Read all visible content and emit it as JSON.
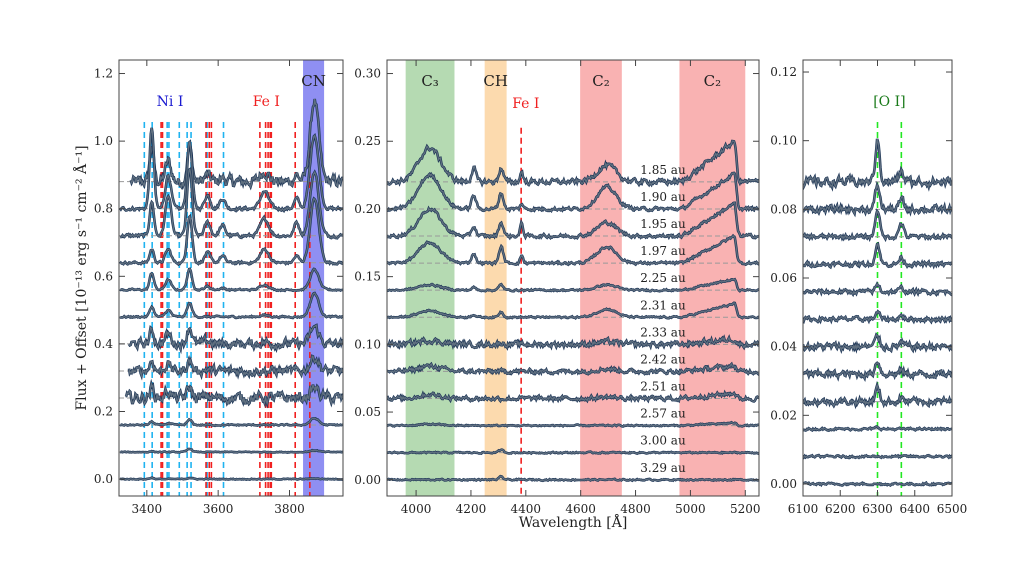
{
  "chart_data": [
    {
      "type": "line",
      "ylabel": "Flux + Offset [10⁻¹³ erg s⁻¹ cm⁻² Å⁻¹]",
      "xlabel": "",
      "xlim": [
        3322,
        3950
      ],
      "ylim": [
        -0.05,
        1.24
      ],
      "xticks": [
        3400,
        3600,
        3800
      ],
      "xtick_labels": [
        "3400",
        "3600",
        "3800"
      ],
      "yticks": [
        0,
        0.2,
        0.4,
        0.6,
        0.8,
        1.0,
        1.2
      ],
      "ytick_labels": [
        "0.0",
        "0.2",
        "0.4",
        "0.6",
        "0.8",
        "1.0",
        "1.2"
      ],
      "bands": [
        {
          "label": "CN",
          "range": [
            3838,
            3897
          ],
          "color": "#7b7bf0",
          "label_color": "#222222"
        }
      ],
      "line_groups": [
        {
          "label": "Ni I",
          "color": "#1fb3f0",
          "label_color": "#1a1ad0",
          "label_at": 3465,
          "positions": [
            3393,
            3415,
            3457,
            3462,
            3491,
            3513,
            3524,
            3569,
            3615
          ]
        },
        {
          "label": "Fe I",
          "color": "#f02020",
          "label_color": "#f02020",
          "label_at": 3735,
          "positions": [
            3440,
            3444,
            3566,
            3575,
            3581,
            3717,
            3733,
            3740,
            3746,
            3749,
            3816,
            3857
          ]
        }
      ],
      "features": [
        {
          "center": 3414,
          "sigma": 6
        },
        {
          "center": 3460,
          "sigma": 8
        },
        {
          "center": 3520,
          "sigma": 7
        },
        {
          "center": 3570,
          "sigma": 8
        },
        {
          "center": 3612,
          "sigma": 8
        },
        {
          "center": 3730,
          "sigma": 12
        },
        {
          "center": 3820,
          "sigma": 7
        },
        {
          "center": 3870,
          "sigma": 12
        }
      ],
      "series": [
        {
          "offset": 0.88,
          "start": 3355,
          "noise": 0.025,
          "amplitudes": [
            0.1,
            0.06,
            0.1,
            0.02,
            0.01,
            0.03,
            0.02,
            0.24
          ]
        },
        {
          "offset": 0.8,
          "start": 3325,
          "noise": 0.008,
          "amplitudes": [
            0.24,
            0.1,
            0.2,
            0.04,
            0.03,
            0.05,
            0.03,
            0.22
          ]
        },
        {
          "offset": 0.72,
          "start": 3325,
          "noise": 0.008,
          "amplitudes": [
            0.1,
            0.12,
            0.2,
            0.04,
            0.03,
            0.05,
            0.04,
            0.19
          ]
        },
        {
          "offset": 0.64,
          "start": 3325,
          "noise": 0.006,
          "amplitudes": [
            0.04,
            0.04,
            0.14,
            0.03,
            0.02,
            0.04,
            0.02,
            0.19
          ]
        },
        {
          "offset": 0.56,
          "start": 3325,
          "noise": 0.004,
          "amplitudes": [
            0.05,
            0.03,
            0.06,
            0.01,
            0.005,
            0.015,
            0,
            0.06
          ]
        },
        {
          "offset": 0.48,
          "start": 3325,
          "noise": 0.004,
          "amplitudes": [
            0.03,
            0.02,
            0.04,
            0,
            0,
            0.005,
            0,
            0.07
          ]
        },
        {
          "offset": 0.4,
          "start": 3350,
          "noise": 0.02,
          "amplitudes": [
            0.04,
            0.03,
            0.05,
            0.01,
            0,
            0.005,
            0,
            0.05
          ]
        },
        {
          "offset": 0.32,
          "start": 3350,
          "noise": 0.02,
          "amplitudes": [
            0.03,
            0.02,
            0.03,
            0.005,
            0,
            0,
            0,
            0.04
          ]
        },
        {
          "offset": 0.24,
          "start": 3340,
          "noise": 0.025,
          "amplitudes": [
            0.03,
            0.02,
            0.03,
            0.005,
            0,
            0,
            0,
            0.03
          ]
        },
        {
          "offset": 0.16,
          "start": 3325,
          "noise": 0.003,
          "amplitudes": [
            0.01,
            0.005,
            0.015,
            0,
            0,
            0,
            0,
            0.02
          ]
        },
        {
          "offset": 0.08,
          "start": 3325,
          "noise": 0.002,
          "amplitudes": [
            0.002,
            0,
            0.01,
            0,
            0,
            0,
            0,
            0.005
          ]
        },
        {
          "offset": 0.0,
          "start": 3325,
          "noise": 0.002,
          "amplitudes": [
            0.004,
            0,
            0.004,
            0,
            0,
            0,
            0,
            0.002
          ]
        }
      ]
    },
    {
      "type": "line",
      "ylabel": "",
      "xlabel": "Wavelength [Å]",
      "xlim": [
        3894,
        5250
      ],
      "ylim": [
        -0.012,
        0.31
      ],
      "xticks": [
        4000,
        4200,
        4400,
        4600,
        4800,
        5000,
        5200
      ],
      "xtick_labels": [
        "4000",
        "4200",
        "4400",
        "4600",
        "4800",
        "5000",
        "5200"
      ],
      "yticks": [
        0,
        0.05,
        0.1,
        0.15,
        0.2,
        0.25,
        0.3
      ],
      "ytick_labels": [
        "0.00",
        "0.05",
        "0.10",
        "0.15",
        "0.20",
        "0.25",
        "0.30"
      ],
      "bands": [
        {
          "label": "C₃",
          "range": [
            3962,
            4140
          ],
          "color": "#a8d3a4",
          "label_color": "#222222"
        },
        {
          "label": "CH",
          "range": [
            4250,
            4330
          ],
          "color": "#fbd3a0",
          "label_color": "#222222"
        },
        {
          "label": "C₂",
          "range": [
            4598,
            4750
          ],
          "color": "#f8a4a4",
          "label_color": "#222222"
        },
        {
          "label": "C₂",
          "range": [
            4960,
            5200
          ],
          "color": "#f8a4a4",
          "label_color": "#222222"
        }
      ],
      "line_groups": [
        {
          "label": "Fe I",
          "color": "#f02020",
          "label_color": "#f02020",
          "label_at": 4400,
          "positions": [
            4383
          ]
        }
      ],
      "features": [
        {
          "center": 4050,
          "sigma": 40
        },
        {
          "center": 4210,
          "sigma": 8
        },
        {
          "center": 4310,
          "sigma": 8
        },
        {
          "center": 4385,
          "sigma": 5
        },
        {
          "center": 4695,
          "sigma": 35
        },
        {
          "center": 5160,
          "sigma": 190,
          "shape": "ramp"
        }
      ],
      "series": [
        {
          "name": "1.85 au",
          "offset": 0.22,
          "noise": 0.003,
          "amplitudes": [
            0.025,
            0.01,
            0.01,
            0.008,
            0.012,
            0.03
          ]
        },
        {
          "name": "1.90 au",
          "offset": 0.2,
          "noise": 0.002,
          "amplitudes": [
            0.025,
            0.01,
            0.012,
            0.004,
            0.016,
            0.026
          ]
        },
        {
          "name": "1.95 au",
          "offset": 0.18,
          "noise": 0.002,
          "amplitudes": [
            0.02,
            0.007,
            0.01,
            0.01,
            0.01,
            0.024
          ]
        },
        {
          "name": "1.97 au",
          "offset": 0.16,
          "noise": 0.0015,
          "amplitudes": [
            0.015,
            0.007,
            0.012,
            0.006,
            0.012,
            0.02
          ]
        },
        {
          "name": "2.25 au",
          "offset": 0.14,
          "noise": 0.001,
          "amplitudes": [
            0.004,
            0.002,
            0.004,
            0,
            0.004,
            0.008
          ]
        },
        {
          "name": "2.31 au",
          "offset": 0.12,
          "noise": 0.001,
          "amplitudes": [
            0.005,
            0.002,
            0.004,
            0,
            0.006,
            0.01
          ]
        },
        {
          "name": "2.33 au",
          "offset": 0.1,
          "noise": 0.003,
          "amplitudes": [
            0.003,
            0,
            0.001,
            0,
            0.002,
            0.004
          ]
        },
        {
          "name": "2.42 au",
          "offset": 0.08,
          "noise": 0.0025,
          "amplitudes": [
            0.004,
            0,
            0,
            0,
            0.002,
            0.004
          ]
        },
        {
          "name": "2.51 au",
          "offset": 0.06,
          "noise": 0.0025,
          "amplitudes": [
            0.003,
            0,
            0,
            0,
            0.001,
            0.004
          ]
        },
        {
          "name": "2.57 au",
          "offset": 0.04,
          "noise": 0.0008,
          "amplitudes": [
            0.001,
            0,
            0,
            0,
            0,
            0.002
          ]
        },
        {
          "name": "3.00 au",
          "offset": 0.02,
          "noise": 0.0008,
          "amplitudes": [
            0,
            0,
            0.002,
            0,
            0,
            0
          ]
        },
        {
          "name": "3.29 au",
          "offset": 0.0,
          "noise": 0.0008,
          "amplitudes": [
            0,
            0,
            0.002,
            0,
            0,
            0
          ]
        }
      ]
    },
    {
      "type": "line",
      "ylabel": "",
      "xlabel": "",
      "xlim": [
        6100,
        6500
      ],
      "ylim": [
        -0.0035,
        0.1235
      ],
      "xticks": [
        6100,
        6200,
        6300,
        6400,
        6500
      ],
      "xtick_labels": [
        "6100",
        "6200",
        "6300",
        "6400",
        "6500"
      ],
      "yticks": [
        0,
        0.02,
        0.04,
        0.06,
        0.08,
        0.1,
        0.12
      ],
      "ytick_labels": [
        "0.00",
        "0.02",
        "0.04",
        "0.06",
        "0.08",
        "0.10",
        "0.12"
      ],
      "bands": [],
      "line_groups": [
        {
          "label": "[O I]",
          "color": "#22e822",
          "label_color": "#1a7a1a",
          "label_at": 6332,
          "positions": [
            6300,
            6364
          ]
        }
      ],
      "features": [
        {
          "center": 6300,
          "sigma": 6
        },
        {
          "center": 6364,
          "sigma": 6
        }
      ],
      "series": [
        {
          "offset": 0.088,
          "noise": 0.002,
          "amplitudes": [
            0.012,
            0.003
          ]
        },
        {
          "offset": 0.08,
          "noise": 0.0015,
          "amplitudes": [
            0.007,
            0.003
          ]
        },
        {
          "offset": 0.072,
          "noise": 0.001,
          "amplitudes": [
            0.008,
            0.004
          ]
        },
        {
          "offset": 0.064,
          "noise": 0.001,
          "amplitudes": [
            0.006,
            0.002
          ]
        },
        {
          "offset": 0.056,
          "noise": 0.001,
          "amplitudes": [
            0.002,
            0.001
          ]
        },
        {
          "offset": 0.048,
          "noise": 0.001,
          "amplitudes": [
            0.002,
            0.001
          ]
        },
        {
          "offset": 0.04,
          "noise": 0.0015,
          "amplitudes": [
            0.003,
            0.001
          ]
        },
        {
          "offset": 0.032,
          "noise": 0.0015,
          "amplitudes": [
            0.004,
            0.001
          ]
        },
        {
          "offset": 0.024,
          "noise": 0.0015,
          "amplitudes": [
            0.004,
            0.001
          ]
        },
        {
          "offset": 0.016,
          "noise": 0.0005,
          "amplitudes": [
            0.0005,
            0
          ]
        },
        {
          "offset": 0.008,
          "noise": 0.0005,
          "amplitudes": [
            0,
            0
          ]
        },
        {
          "offset": 0.0,
          "noise": 0.0005,
          "amplitudes": [
            0,
            0
          ]
        }
      ]
    }
  ]
}
